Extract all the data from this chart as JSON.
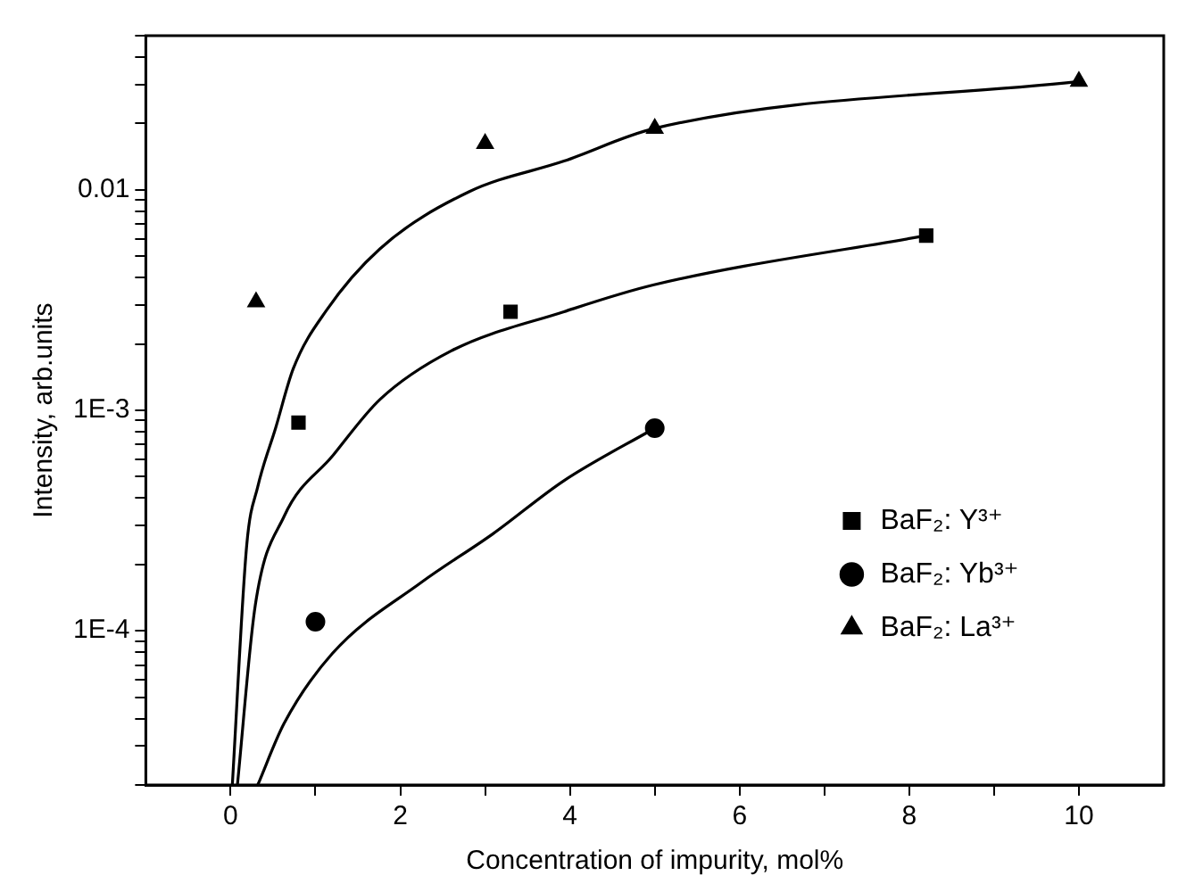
{
  "chart_data": {
    "type": "scatter",
    "xlabel": "Concentration of impurity, mol%",
    "ylabel": "Intensity, arb.units",
    "log": "y",
    "grid": false,
    "legend": "bottom right",
    "xlim": [
      -1,
      11
    ],
    "xticks": [
      0,
      {
        "value": 1,
        "label": null
      },
      2,
      {
        "value": 3,
        "label": null
      },
      4,
      {
        "value": 5,
        "label": null
      },
      6,
      {
        "value": 7,
        "label": null
      },
      8,
      {
        "value": 9,
        "label": null
      },
      10
    ],
    "ylim": [
      2e-05,
      0.05
    ],
    "yticks": [
      {
        "value": 2e-05,
        "label": null
      },
      {
        "value": 3e-05,
        "label": null
      },
      {
        "value": 4e-05,
        "label": null
      },
      {
        "value": 5e-05,
        "label": null
      },
      {
        "value": 6e-05,
        "label": null
      },
      {
        "value": 7e-05,
        "label": null
      },
      {
        "value": 8e-05,
        "label": null
      },
      {
        "value": 9e-05,
        "label": null
      },
      {
        "value": 0.0001,
        "label": "1E-4"
      },
      {
        "value": 0.0002,
        "label": null
      },
      {
        "value": 0.0003,
        "label": null
      },
      {
        "value": 0.0004,
        "label": null
      },
      {
        "value": 0.0005,
        "label": null
      },
      {
        "value": 0.0006,
        "label": null
      },
      {
        "value": 0.0007,
        "label": null
      },
      {
        "value": 0.0008,
        "label": null
      },
      {
        "value": 0.0009,
        "label": null
      },
      {
        "value": 0.001,
        "label": "1E-3"
      },
      {
        "value": 0.002,
        "label": null
      },
      {
        "value": 0.003,
        "label": null
      },
      {
        "value": 0.004,
        "label": null
      },
      {
        "value": 0.005,
        "label": null
      },
      {
        "value": 0.006,
        "label": null
      },
      {
        "value": 0.007,
        "label": null
      },
      {
        "value": 0.008,
        "label": null
      },
      {
        "value": 0.009,
        "label": null
      },
      {
        "value": 0.01,
        "label": "0.01"
      },
      {
        "value": 0.02,
        "label": null
      },
      {
        "value": 0.03,
        "label": null
      },
      {
        "value": 0.04,
        "label": null
      },
      {
        "value": 0.05,
        "label": null
      }
    ],
    "series": [
      {
        "name": "BaF₂: Y³⁺",
        "type": "scatter",
        "marker": "square",
        "color": "#000000",
        "x": [
          0.8,
          3.3,
          8.2
        ],
        "values": [
          0.00088,
          0.0028,
          0.0062
        ]
      },
      {
        "name": "BaF₂: Yb³⁺",
        "type": "scatter",
        "marker": "circle",
        "color": "#000000",
        "x": [
          1,
          5
        ],
        "values": [
          0.00011,
          0.00083
        ]
      },
      {
        "name": "BaF₂: La³⁺",
        "type": "scatter",
        "marker": "triangle",
        "color": "#000000",
        "x": [
          0.3,
          3,
          5,
          10
        ],
        "values": [
          0.0031,
          0.0162,
          0.019,
          0.031
        ]
      },
      {
        "type": "line",
        "marker": "none",
        "line_style": "solid",
        "color": "#000000",
        "x": [
          0.08,
          0.29,
          0.63,
          1.2,
          1.76,
          2.6,
          3.93,
          4.98,
          8.2
        ],
        "values": [
          2e-05,
          0.00013,
          0.00033,
          0.00062,
          0.00112,
          0.00186,
          0.0028,
          0.0037,
          0.0062
        ]
      },
      {
        "type": "line",
        "marker": "none",
        "line_style": "solid",
        "color": "#000000",
        "x": [
          0.32,
          0.63,
          1.2,
          2.25,
          3.09,
          3.93,
          5
        ],
        "values": [
          2e-05,
          3.8e-05,
          7.9e-05,
          0.000166,
          0.000275,
          0.00048,
          0.00083
        ]
      },
      {
        "type": "line",
        "marker": "none",
        "line_style": "solid",
        "color": "#000000",
        "x": [
          0.02,
          0.19,
          0.32,
          0.53,
          0.74,
          1.13,
          1.76,
          2.81,
          3.93,
          5,
          10
        ],
        "values": [
          2e-05,
          0.000245,
          0.00045,
          0.00083,
          0.00155,
          0.00284,
          0.0054,
          0.0098,
          0.0135,
          0.019,
          0.031
        ]
      }
    ]
  }
}
